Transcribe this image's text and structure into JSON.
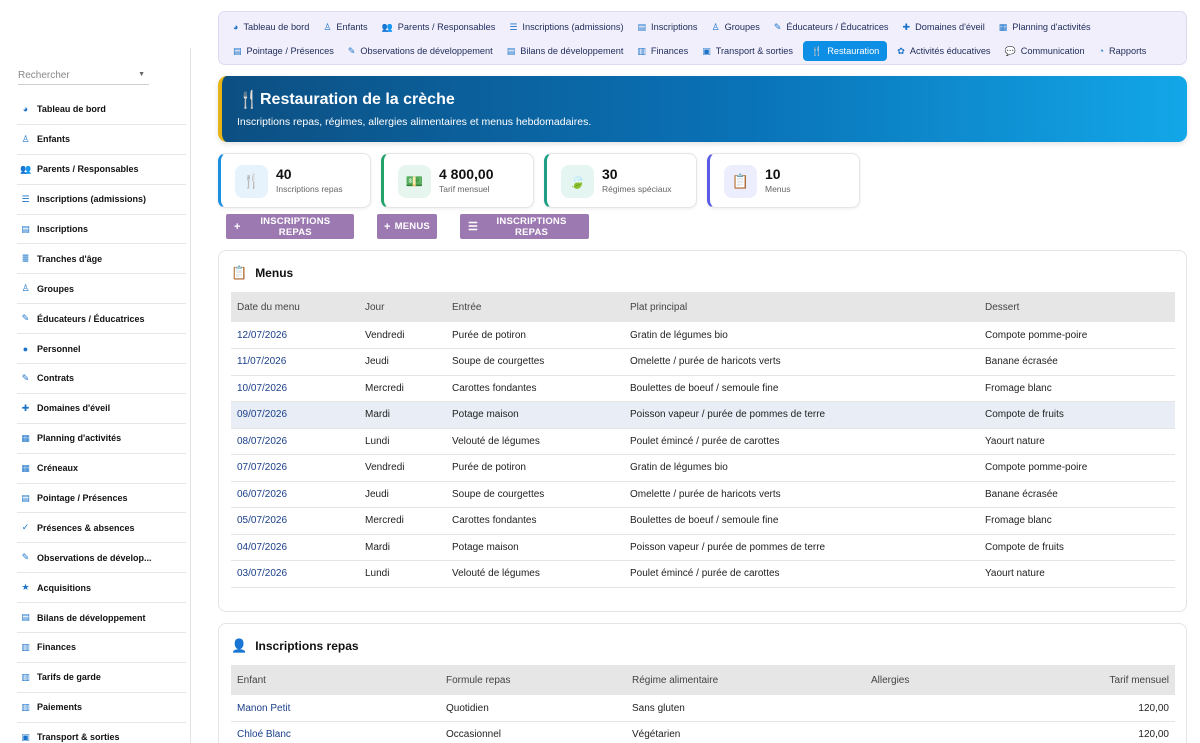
{
  "sidebar": {
    "search_placeholder": "Rechercher",
    "items": [
      {
        "label": "Tableau de bord",
        "icon": "gauge-icon",
        "glyph": "◕"
      },
      {
        "label": "Enfants",
        "icon": "child-icon",
        "glyph": "♙"
      },
      {
        "label": "Parents / Responsables",
        "icon": "users-icon",
        "glyph": "👥"
      },
      {
        "label": "Inscriptions (admissions)",
        "icon": "list-icon",
        "glyph": "☰"
      },
      {
        "label": "Inscriptions",
        "icon": "clipboard-icon",
        "glyph": "▤"
      },
      {
        "label": "Tranches d'âge",
        "icon": "layers-icon",
        "glyph": "≣"
      },
      {
        "label": "Groupes",
        "icon": "child-group-icon",
        "glyph": "♙"
      },
      {
        "label": "Éducateurs / Éducatrices",
        "icon": "educator-icon",
        "glyph": "✎"
      },
      {
        "label": "Personnel",
        "icon": "user-icon",
        "glyph": "●"
      },
      {
        "label": "Contrats",
        "icon": "contract-icon",
        "glyph": "✎"
      },
      {
        "label": "Domaines d'éveil",
        "icon": "puzzle-icon",
        "glyph": "✚"
      },
      {
        "label": "Planning d'activités",
        "icon": "calendar-icon",
        "glyph": "▦"
      },
      {
        "label": "Créneaux",
        "icon": "calendar-slot-icon",
        "glyph": "▦"
      },
      {
        "label": "Pointage / Présences",
        "icon": "clipboard-check-icon",
        "glyph": "▤"
      },
      {
        "label": "Présences & absences",
        "icon": "user-check-icon",
        "glyph": "✓"
      },
      {
        "label": "Observations de dévelop...",
        "icon": "pen-icon",
        "glyph": "✎"
      },
      {
        "label": "Acquisitions",
        "icon": "star-icon",
        "glyph": "★"
      },
      {
        "label": "Bilans de développement",
        "icon": "report-icon",
        "glyph": "▤"
      },
      {
        "label": "Finances",
        "icon": "money-icon",
        "glyph": "▥"
      },
      {
        "label": "Tarifs de garde",
        "icon": "tag-icon",
        "glyph": "▥"
      },
      {
        "label": "Paiements",
        "icon": "payment-icon",
        "glyph": "▥"
      },
      {
        "label": "Transport & sorties",
        "icon": "bus-icon",
        "glyph": "▣"
      }
    ]
  },
  "topnav": {
    "row1": [
      {
        "label": "Tableau de bord",
        "icon": "gauge-icon",
        "glyph": "◕"
      },
      {
        "label": "Enfants",
        "icon": "child-icon",
        "glyph": "♙"
      },
      {
        "label": "Parents / Responsables",
        "icon": "users-icon",
        "glyph": "👥"
      },
      {
        "label": "Inscriptions (admissions)",
        "icon": "list-icon",
        "glyph": "☰"
      },
      {
        "label": "Inscriptions",
        "icon": "clipboard-icon",
        "glyph": "▤"
      },
      {
        "label": "Groupes",
        "icon": "child-group-icon",
        "glyph": "♙"
      },
      {
        "label": "Éducateurs / Éducatrices",
        "icon": "educator-icon",
        "glyph": "✎"
      },
      {
        "label": "Domaines d'éveil",
        "icon": "puzzle-icon",
        "glyph": "✚"
      },
      {
        "label": "Planning d'activités",
        "icon": "calendar-icon",
        "glyph": "▦"
      }
    ],
    "row2": [
      {
        "label": "Pointage / Présences",
        "icon": "clipboard-check-icon",
        "glyph": "▤"
      },
      {
        "label": "Observations de développement",
        "icon": "pen-icon",
        "glyph": "✎"
      },
      {
        "label": "Bilans de développement",
        "icon": "report-icon",
        "glyph": "▤"
      },
      {
        "label": "Finances",
        "icon": "money-icon",
        "glyph": "▥"
      },
      {
        "label": "Transport & sorties",
        "icon": "bus-icon",
        "glyph": "▣"
      },
      {
        "label": "Restauration",
        "icon": "utensils-icon",
        "glyph": "🍴",
        "active": true
      },
      {
        "label": "Activités éducatives",
        "icon": "palette-icon",
        "glyph": "✿"
      },
      {
        "label": "Communication",
        "icon": "chat-icon",
        "glyph": "💬"
      },
      {
        "label": "Rapports",
        "icon": "pie-chart-icon",
        "glyph": "◔"
      }
    ]
  },
  "hero": {
    "title": "Restauration de la crèche",
    "subtitle": "Inscriptions repas, régimes, allergies alimentaires et menus hebdomadaires.",
    "icon": "utensils-icon",
    "gradient_start": "#0c4f82",
    "gradient_end": "#12a7e8",
    "accent": "#e7b418"
  },
  "stats": [
    {
      "value": "40",
      "label": "Inscriptions repas",
      "icon": "utensils-icon",
      "glyph": "🍴",
      "color": "#1b8fe0",
      "bg": "#e7f3fc"
    },
    {
      "value": "4 800,00",
      "label": "Tarif mensuel",
      "icon": "money-icon",
      "glyph": "💵",
      "color": "#22a36b",
      "bg": "#e6f6ee"
    },
    {
      "value": "30",
      "label": "Régimes spéciaux",
      "icon": "leaf-icon",
      "glyph": "🍃",
      "color": "#1f9e86",
      "bg": "#e5f5f1"
    },
    {
      "value": "10",
      "label": "Menus",
      "icon": "clipboard-icon",
      "glyph": "📋",
      "color": "#5a5ce6",
      "bg": "#eceefd"
    }
  ],
  "actions": [
    {
      "label": "INSCRIPTIONS REPAS",
      "glyph": "+",
      "icon": "plus-icon"
    },
    {
      "label": "MENUS",
      "glyph": "+",
      "icon": "plus-icon"
    },
    {
      "label": "INSCRIPTIONS REPAS",
      "glyph": "☰",
      "icon": "list-icon"
    }
  ],
  "menus": {
    "title": "Menus",
    "icon": "clipboard-icon",
    "columns": [
      "Date du menu",
      "Jour",
      "Entrée",
      "Plat principal",
      "Dessert"
    ],
    "rows": [
      [
        "12/07/2026",
        "Vendredi",
        "Purée de potiron",
        "Gratin de légumes bio",
        "Compote pomme-poire"
      ],
      [
        "11/07/2026",
        "Jeudi",
        "Soupe de courgettes",
        "Omelette / purée de haricots verts",
        "Banane écrasée"
      ],
      [
        "10/07/2026",
        "Mercredi",
        "Carottes fondantes",
        "Boulettes de boeuf / semoule fine",
        "Fromage blanc"
      ],
      [
        "09/07/2026",
        "Mardi",
        "Potage maison",
        "Poisson vapeur / purée de pommes de terre",
        "Compote de fruits"
      ],
      [
        "08/07/2026",
        "Lundi",
        "Velouté de légumes",
        "Poulet émincé / purée de carottes",
        "Yaourt nature"
      ],
      [
        "07/07/2026",
        "Vendredi",
        "Purée de potiron",
        "Gratin de légumes bio",
        "Compote pomme-poire"
      ],
      [
        "06/07/2026",
        "Jeudi",
        "Soupe de courgettes",
        "Omelette / purée de haricots verts",
        "Banane écrasée"
      ],
      [
        "05/07/2026",
        "Mercredi",
        "Carottes fondantes",
        "Boulettes de boeuf / semoule fine",
        "Fromage blanc"
      ],
      [
        "04/07/2026",
        "Mardi",
        "Potage maison",
        "Poisson vapeur / purée de pommes de terre",
        "Compote de fruits"
      ],
      [
        "03/07/2026",
        "Lundi",
        "Velouté de légumes",
        "Poulet émincé / purée de carottes",
        "Yaourt nature"
      ]
    ]
  },
  "inscriptions": {
    "title": "Inscriptions repas",
    "icon": "user-check-icon",
    "columns": [
      "Enfant",
      "Formule repas",
      "Régime alimentaire",
      "Allergies",
      "Tarif mensuel"
    ],
    "rows": [
      [
        "Manon Petit",
        "Quotidien",
        "Sans gluten",
        "",
        "120,00"
      ],
      [
        "Chloé Blanc",
        "Occasionnel",
        "Végétarien",
        "",
        "120,00"
      ]
    ]
  }
}
